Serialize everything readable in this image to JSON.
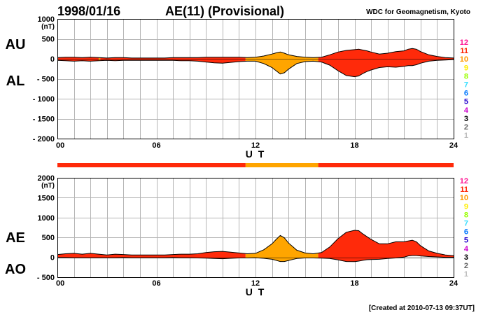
{
  "header": {
    "date": "1998/01/16",
    "title": "AE(11) (Provisional)",
    "source": "WDC for Geomagnetism, Kyoto"
  },
  "footer": {
    "created": "[Created at 2010-07-13 09:37UT]"
  },
  "colors": {
    "level_11": "#ff2a0a",
    "level_10": "#ffa500",
    "grid": "#b4b4b4",
    "axis": "#000000"
  },
  "level_scale": [
    {
      "label": "12",
      "color": "#ff1493"
    },
    {
      "label": "11",
      "color": "#ff2200"
    },
    {
      "label": "10",
      "color": "#ff9900"
    },
    {
      "label": "9",
      "color": "#ffee00"
    },
    {
      "label": "8",
      "color": "#99ff00"
    },
    {
      "label": "7",
      "color": "#33ddff"
    },
    {
      "label": "6",
      "color": "#0077ff"
    },
    {
      "label": "5",
      "color": "#2200cc"
    },
    {
      "label": "4",
      "color": "#cc00cc"
    },
    {
      "label": "3",
      "color": "#000000"
    },
    {
      "label": "2",
      "color": "#666666"
    },
    {
      "label": "1",
      "color": "#bbbbbb"
    }
  ],
  "chart_data": [
    {
      "type": "area",
      "panel": "top",
      "series_labels": [
        "AU",
        "AL"
      ],
      "ylabel": "(nT)",
      "xlabel": "U T",
      "xlim": [
        0,
        24
      ],
      "ylim": [
        -2000,
        1000
      ],
      "x_ticks": [
        "00",
        "06",
        "12",
        "18",
        "24"
      ],
      "y_ticks": [
        "1000",
        "500",
        "0",
        "- 500",
        "- 1000",
        "- 1500",
        "- 2000"
      ],
      "grid": true,
      "x": [
        0,
        0.5,
        1,
        1.5,
        2,
        2.5,
        3,
        3.5,
        4,
        4.5,
        5,
        5.5,
        6,
        6.5,
        7,
        7.5,
        8,
        8.5,
        9,
        9.5,
        10,
        10.5,
        11,
        11.5,
        12,
        12.5,
        13,
        13.25,
        13.5,
        13.75,
        14,
        14.25,
        14.5,
        15,
        15.5,
        16,
        16.5,
        17,
        17.5,
        18,
        18.25,
        18.5,
        18.75,
        19,
        19.5,
        20,
        20.5,
        21,
        21.25,
        21.5,
        21.75,
        22,
        22.5,
        23,
        23.5,
        24
      ],
      "series": [
        {
          "name": "AU",
          "values": [
            30,
            40,
            40,
            30,
            40,
            30,
            20,
            30,
            30,
            20,
            20,
            20,
            20,
            20,
            30,
            30,
            30,
            30,
            40,
            40,
            40,
            40,
            40,
            30,
            40,
            70,
            120,
            150,
            170,
            140,
            100,
            80,
            60,
            40,
            30,
            40,
            100,
            170,
            210,
            230,
            240,
            220,
            200,
            170,
            120,
            140,
            180,
            200,
            240,
            260,
            240,
            180,
            100,
            60,
            30,
            20
          ]
        },
        {
          "name": "AL",
          "values": [
            -40,
            -50,
            -60,
            -50,
            -60,
            -50,
            -40,
            -50,
            -40,
            -40,
            -40,
            -40,
            -40,
            -40,
            -40,
            -50,
            -50,
            -60,
            -80,
            -100,
            -110,
            -90,
            -70,
            -60,
            -60,
            -120,
            -220,
            -300,
            -380,
            -350,
            -260,
            -190,
            -120,
            -70,
            -60,
            -80,
            -160,
            -300,
            -420,
            -450,
            -430,
            -370,
            -320,
            -280,
            -220,
            -200,
            -210,
            -190,
            -170,
            -170,
            -150,
            -110,
            -60,
            -40,
            -30,
            -20
          ]
        }
      ],
      "activity_bar": [
        {
          "from": 0,
          "to": 2.5,
          "level": "11"
        },
        {
          "from": 2.5,
          "to": 2.6,
          "level": "10"
        },
        {
          "from": 2.6,
          "to": 11.4,
          "level": "11"
        },
        {
          "from": 11.4,
          "to": 15.8,
          "level": "10"
        },
        {
          "from": 15.8,
          "to": 24,
          "level": "11"
        }
      ]
    },
    {
      "type": "area",
      "panel": "bottom",
      "series_labels": [
        "AE",
        "AO"
      ],
      "ylabel": "(nT)",
      "xlabel": "U T",
      "xlim": [
        0,
        24
      ],
      "ylim": [
        -500,
        2000
      ],
      "x_ticks": [
        "00",
        "06",
        "12",
        "18",
        "24"
      ],
      "y_ticks": [
        "2000",
        "1500",
        "1000",
        "500",
        "0",
        "- 500"
      ],
      "grid": true,
      "x": [
        0,
        0.5,
        1,
        1.5,
        2,
        2.5,
        3,
        3.5,
        4,
        4.5,
        5,
        5.5,
        6,
        6.5,
        7,
        7.5,
        8,
        8.5,
        9,
        9.5,
        10,
        10.5,
        11,
        11.5,
        12,
        12.5,
        13,
        13.25,
        13.5,
        13.75,
        14,
        14.25,
        14.5,
        15,
        15.5,
        16,
        16.5,
        17,
        17.5,
        18,
        18.25,
        18.5,
        18.75,
        19,
        19.5,
        20,
        20.5,
        21,
        21.25,
        21.5,
        21.75,
        22,
        22.5,
        23,
        23.5,
        24
      ],
      "series": [
        {
          "name": "AE",
          "values": [
            70,
            90,
            100,
            80,
            100,
            80,
            60,
            80,
            70,
            60,
            60,
            60,
            60,
            60,
            70,
            80,
            80,
            90,
            120,
            140,
            150,
            130,
            110,
            90,
            100,
            190,
            340,
            450,
            550,
            490,
            360,
            270,
            180,
            110,
            90,
            120,
            260,
            470,
            630,
            680,
            670,
            590,
            520,
            450,
            340,
            340,
            390,
            390,
            410,
            430,
            390,
            290,
            160,
            100,
            60,
            40
          ]
        },
        {
          "name": "AO",
          "values": [
            -5,
            -5,
            -10,
            -10,
            -10,
            -10,
            -10,
            -10,
            -5,
            -10,
            -10,
            -10,
            -10,
            -10,
            -5,
            -10,
            -10,
            -15,
            -20,
            -30,
            -35,
            -25,
            -15,
            -15,
            -10,
            -25,
            -50,
            -75,
            -105,
            -105,
            -80,
            -55,
            -30,
            -15,
            -15,
            -20,
            -30,
            -65,
            -105,
            -110,
            -95,
            -75,
            -60,
            -55,
            -50,
            -30,
            -15,
            5,
            35,
            45,
            45,
            35,
            20,
            10,
            0,
            0
          ]
        }
      ],
      "activity_bar": [
        {
          "from": 0,
          "to": 11.4,
          "level": "11"
        },
        {
          "from": 11.4,
          "to": 15.8,
          "level": "10"
        },
        {
          "from": 15.8,
          "to": 24,
          "level": "11"
        }
      ]
    }
  ]
}
